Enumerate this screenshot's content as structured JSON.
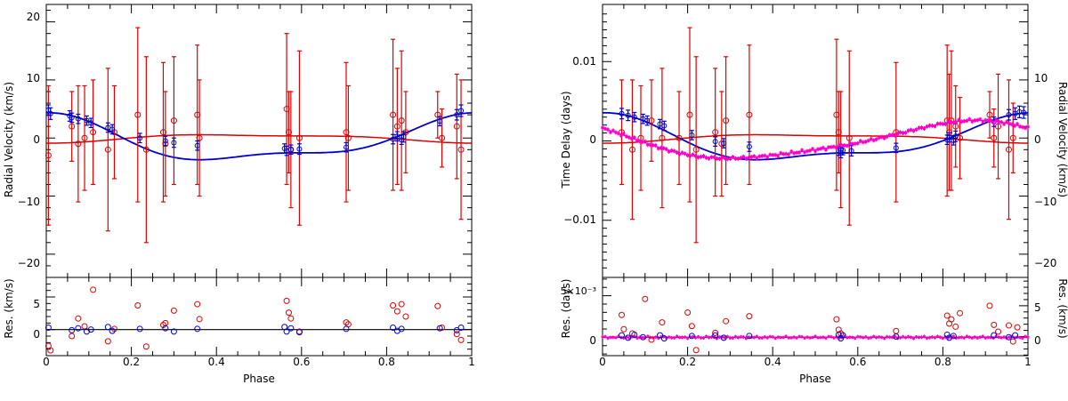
{
  "chart_data": [
    {
      "panel": "left",
      "type": "scatter",
      "xlabel": "Phase",
      "xlim": [
        0,
        1
      ],
      "xticks": [
        "0",
        "0.2",
        "0.4",
        "0.6",
        "0.8",
        "1"
      ],
      "top": {
        "ylabel": "Radial Velocity  (km/s)",
        "ylim": [
          -24,
          23
        ],
        "yticks": [
          "−20",
          "−10",
          "0",
          "10",
          "20"
        ],
        "series": [
          {
            "name": "red RV",
            "color": "#dd0000",
            "x": [
              0.005,
              0.06,
              0.075,
              0.09,
              0.11,
              0.145,
              0.16,
              0.215,
              0.235,
              0.275,
              0.28,
              0.3,
              0.355,
              0.36,
              0.565,
              0.57,
              0.575,
              0.595,
              0.705,
              0.71,
              0.815,
              0.825,
              0.835,
              0.845,
              0.92,
              0.93,
              0.965,
              0.975
            ],
            "y": [
              -3,
              2,
              -1,
              0,
              1,
              -2,
              1,
              4,
              -2,
              1,
              -1,
              3,
              4,
              0,
              5,
              1,
              -2,
              0,
              1,
              0,
              4,
              2,
              3,
              1,
              4,
              0,
              2,
              -2
            ],
            "err": [
              12,
              6,
              10,
              9,
              9,
              14,
              8,
              15,
              16,
              12,
              9,
              11,
              12,
              10,
              13,
              7,
              10,
              15,
              12,
              9,
              13,
              10,
              12,
              7,
              4,
              5,
              9,
              12
            ]
          },
          {
            "name": "blue RV",
            "color": "#0000cc",
            "x": [
              0.005,
              0.01,
              0.055,
              0.06,
              0.075,
              0.095,
              0.105,
              0.145,
              0.155,
              0.22,
              0.28,
              0.3,
              0.355,
              0.56,
              0.565,
              0.575,
              0.595,
              0.705,
              0.815,
              0.825,
              0.835,
              0.84,
              0.925,
              0.965,
              0.975
            ],
            "y": [
              4.8,
              4.2,
              3.8,
              3.5,
              3.3,
              3.0,
              2.6,
              1.8,
              1.5,
              0.0,
              -0.5,
              -0.8,
              -1.3,
              -1.8,
              -2.2,
              -2.0,
              -1.9,
              -1.6,
              -0.2,
              0.3,
              -0.3,
              0.2,
              2.9,
              4.0,
              4.7
            ],
            "err": [
              0.9,
              1.0,
              0.9,
              0.8,
              0.8,
              0.8,
              0.8,
              0.8,
              0.8,
              0.8,
              0.8,
              0.8,
              0.8,
              0.8,
              0.8,
              0.8,
              0.9,
              0.8,
              0.8,
              0.8,
              0.8,
              0.9,
              0.8,
              0.9,
              1.0
            ]
          }
        ]
      },
      "bottom": {
        "ylabel": "Res.  (km/s)",
        "ylim": [
          -4,
          8
        ],
        "yticks": [
          "0",
          "5"
        ],
        "series": [
          {
            "name": "red residuals",
            "color": "#dd0000",
            "x": [
              0.005,
              0.01,
              0.06,
              0.075,
              0.09,
              0.11,
              0.145,
              0.16,
              0.215,
              0.235,
              0.275,
              0.28,
              0.3,
              0.355,
              0.36,
              0.565,
              0.57,
              0.575,
              0.595,
              0.705,
              0.71,
              0.815,
              0.825,
              0.835,
              0.845,
              0.92,
              0.93,
              0.965,
              0.975
            ],
            "y": [
              -2.5,
              -3.2,
              -1.0,
              1.7,
              0.5,
              6.1,
              -1.8,
              0.1,
              3.7,
              -2.6,
              0.7,
              1.0,
              2.9,
              3.9,
              1.6,
              4.4,
              2.6,
              1.7,
              -0.3,
              1.1,
              0.8,
              3.7,
              2.8,
              3.9,
              2.0,
              3.6,
              0.3,
              -0.7,
              -1.6
            ]
          },
          {
            "name": "blue residuals",
            "color": "#0000cc",
            "x": [
              0.005,
              0.06,
              0.075,
              0.095,
              0.105,
              0.145,
              0.155,
              0.22,
              0.28,
              0.3,
              0.355,
              0.56,
              0.565,
              0.575,
              0.595,
              0.705,
              0.815,
              0.825,
              0.835,
              0.925,
              0.965,
              0.975
            ],
            "y": [
              0.3,
              -0.1,
              0.2,
              -0.3,
              0.0,
              0.4,
              -0.2,
              0.1,
              0.2,
              -0.3,
              0.1,
              0.4,
              -0.3,
              0.2,
              -0.4,
              0.1,
              0.3,
              -0.2,
              0.1,
              0.2,
              -0.1,
              0.3
            ]
          }
        ]
      }
    },
    {
      "panel": "right",
      "type": "scatter",
      "xlabel": "Phase",
      "xlim": [
        0,
        1
      ],
      "xticks": [
        "0",
        "0.2",
        "0.4",
        "0.6",
        "0.8",
        "1"
      ],
      "top": {
        "ylabel_left": "Time Delay  (days)",
        "ylabel_right": "Radial Velocity  (km/s)",
        "ylim_left": [
          -0.0172,
          0.0172
        ],
        "ylim_right": [
          -24,
          23
        ],
        "yticks_left": [
          "−0.01",
          "0",
          "0.01"
        ],
        "yticks_right": [
          "−20",
          "−10",
          "0",
          "10"
        ],
        "series": [
          {
            "name": "time delay",
            "color": "#ff00cc",
            "axis": "left",
            "amplitude_days": 0.0025,
            "x_start": 0.0,
            "x_end": 1.0
          },
          {
            "name": "red RV",
            "color": "#dd0000",
            "axis": "right",
            "x": [
              0.045,
              0.07,
              0.09,
              0.115,
              0.14,
              0.18,
              0.205,
              0.22,
              0.265,
              0.28,
              0.29,
              0.345,
              0.55,
              0.555,
              0.56,
              0.58,
              0.69,
              0.81,
              0.815,
              0.82,
              0.83,
              0.84,
              0.91,
              0.92,
              0.93,
              0.955,
              0.965
            ],
            "y": [
              1,
              -2,
              0,
              3,
              0,
              0,
              4,
              -2,
              1,
              -1,
              3,
              4,
              4,
              1,
              -2,
              0,
              1,
              3,
              1,
              3,
              2,
              0,
              4,
              0,
              2,
              -2,
              0
            ],
            "err": [
              9,
              12,
              9,
              7,
              12,
              8,
              15,
              16,
              11,
              9,
              11,
              12,
              13,
              7,
              10,
              15,
              12,
              13,
              10,
              12,
              7,
              7,
              4,
              5,
              9,
              12,
              6
            ]
          },
          {
            "name": "blue RV",
            "color": "#0000cc",
            "axis": "right",
            "x": [
              0.045,
              0.06,
              0.075,
              0.095,
              0.105,
              0.135,
              0.145,
              0.21,
              0.265,
              0.285,
              0.345,
              0.555,
              0.56,
              0.565,
              0.585,
              0.69,
              0.81,
              0.815,
              0.825,
              0.83,
              0.92,
              0.955,
              0.97,
              0.98,
              0.99
            ],
            "y": [
              4.2,
              3.9,
              3.6,
              3.3,
              3.0,
              2.4,
              2.1,
              0.5,
              -0.6,
              -0.9,
              -1.5,
              -2.2,
              -2.5,
              -2.1,
              -2.2,
              -1.7,
              -0.3,
              0.1,
              -0.4,
              0.3,
              2.8,
              4.0,
              4.2,
              4.5,
              4.4
            ],
            "err": [
              0.9,
              0.9,
              0.8,
              0.8,
              0.8,
              0.8,
              0.8,
              0.8,
              0.8,
              0.8,
              0.8,
              0.8,
              0.9,
              0.8,
              0.9,
              0.8,
              0.8,
              0.8,
              0.8,
              0.9,
              0.8,
              0.9,
              1.0,
              1.0,
              1.0
            ]
          }
        ]
      },
      "bottom": {
        "ylabel_left": "Res.  (days)",
        "ylabel_right": "Res.  (km/s)",
        "ylim_left": [
          -0.0022,
          0.0072
        ],
        "ylim_right": [
          -3.1,
          9.6
        ],
        "yticks_left": [
          "0",
          "5×10⁻³"
        ],
        "yticks_right": [
          "0",
          "5"
        ],
        "series": [
          {
            "name": "red residuals",
            "color": "#dd0000",
            "axis": "right",
            "x": [
              0.045,
              0.05,
              0.07,
              0.1,
              0.115,
              0.14,
              0.2,
              0.21,
              0.22,
              0.265,
              0.29,
              0.345,
              0.55,
              0.555,
              0.56,
              0.69,
              0.81,
              0.815,
              0.82,
              0.83,
              0.84,
              0.91,
              0.92,
              0.93,
              0.955,
              0.965,
              0.975
            ],
            "y": [
              3.5,
              1.2,
              0.5,
              6.1,
              -0.5,
              2.3,
              3.9,
              1.7,
              -2.2,
              0.6,
              2.5,
              3.3,
              2.8,
              1.1,
              0.5,
              0.9,
              3.4,
              2.1,
              2.8,
              1.6,
              3.8,
              5.0,
              1.9,
              0.8,
              1.8,
              -0.8,
              1.5
            ]
          },
          {
            "name": "blue residuals",
            "color": "#0000cc",
            "axis": "right",
            "x": [
              0.045,
              0.06,
              0.075,
              0.095,
              0.135,
              0.145,
              0.21,
              0.265,
              0.285,
              0.345,
              0.555,
              0.56,
              0.565,
              0.69,
              0.81,
              0.815,
              0.825,
              0.92,
              0.955,
              0.97
            ],
            "y": [
              0.2,
              -0.2,
              0.3,
              -0.1,
              0.2,
              -0.3,
              0.1,
              0.2,
              -0.2,
              0.1,
              0.3,
              -0.3,
              0.2,
              0.0,
              0.3,
              -0.2,
              0.1,
              0.2,
              -0.1,
              0.2
            ]
          },
          {
            "name": "time delay residuals",
            "color": "#ff00cc",
            "axis": "left",
            "amplitude_days": 8e-05
          }
        ]
      }
    }
  ]
}
